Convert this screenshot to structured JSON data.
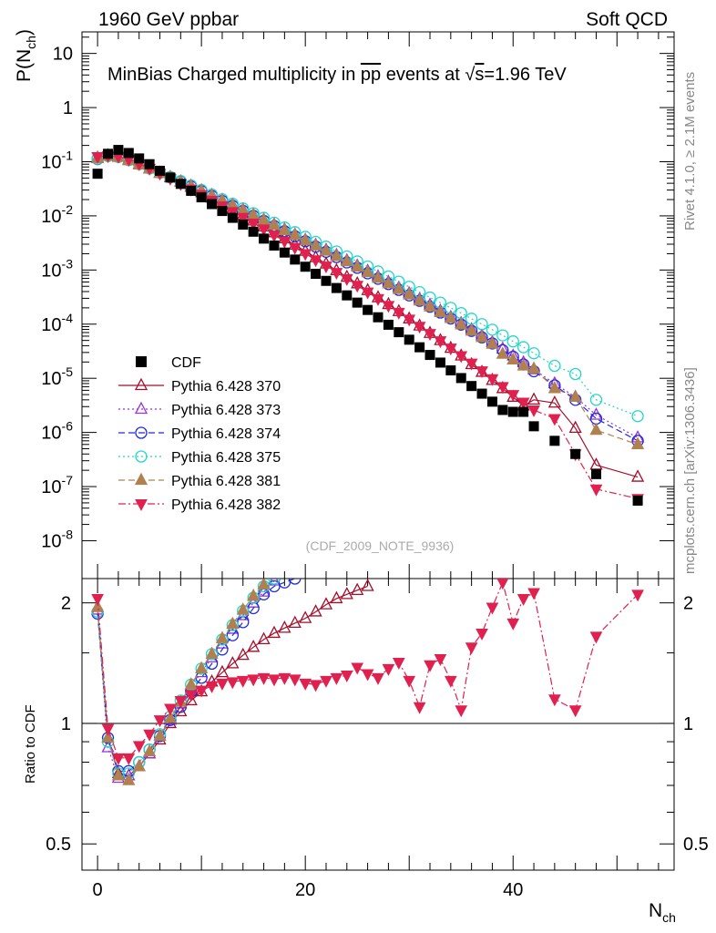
{
  "header": {
    "left": "1960 GeV ppbar",
    "right": "Soft QCD"
  },
  "side_labels": {
    "top": "Rivet 4.1.0, ≥ 2.1M events",
    "bottom": "mcplots.cern.ch [arXiv:1306.3436]"
  },
  "chart_data": {
    "type": "scatter",
    "title_prefix": "MinBias Charged multiplicity in ",
    "title_pbar": "pp",
    "title_mid": " events at ",
    "title_sqrt": "s",
    "title_suffix": "=1.96 TeV",
    "watermark": "(CDF_2009_NOTE_9936)",
    "ylabel_main": "P(N",
    "ylabel_main_sub": "ch",
    "ylabel_main_close": ")",
    "ylabel_ratio": "Ratio to CDF",
    "xlabel": "N",
    "xlabel_sub": "ch",
    "yscale": "log",
    "ylim_main": [
      2e-09,
      25
    ],
    "ylim_ratio": [
      0.43,
      2.3
    ],
    "xlim": [
      -1.5,
      55.5
    ],
    "x_ticks": [
      0,
      20,
      40
    ],
    "y_ticks_main": [
      {
        "base": "10",
        "exp": "-8",
        "value": 1e-08
      },
      {
        "base": "10",
        "exp": "-7",
        "value": 1e-07
      },
      {
        "base": "10",
        "exp": "-6",
        "value": 1e-06
      },
      {
        "base": "10",
        "exp": "-5",
        "value": 1e-05
      },
      {
        "base": "10",
        "exp": "-4",
        "value": 0.0001
      },
      {
        "base": "10",
        "exp": "-3",
        "value": 0.001
      },
      {
        "base": "10",
        "exp": "-2",
        "value": 0.01
      },
      {
        "base": "10",
        "exp": "-1",
        "value": 0.1
      },
      {
        "base": "1",
        "exp": "",
        "value": 1
      },
      {
        "base": "10",
        "exp": "",
        "value": 10
      }
    ],
    "y_ticks_ratio": [
      {
        "label": "0.5",
        "value": 0.5
      },
      {
        "label": "1",
        "value": 1
      },
      {
        "label": "2",
        "value": 2
      }
    ],
    "data": {
      "name": "CDF",
      "color": "#000000",
      "x": [
        0,
        1,
        2,
        3,
        4,
        5,
        6,
        7,
        8,
        9,
        10,
        11,
        12,
        13,
        14,
        15,
        16,
        17,
        18,
        19,
        20,
        21,
        22,
        23,
        24,
        25,
        26,
        27,
        28,
        29,
        30,
        31,
        32,
        33,
        34,
        35,
        36,
        37,
        38,
        39,
        40,
        41,
        42,
        44,
        46,
        48,
        52
      ],
      "y": [
        0.06,
        0.14,
        0.165,
        0.145,
        0.115,
        0.09,
        0.068,
        0.051,
        0.039,
        0.029,
        0.022,
        0.0165,
        0.0123,
        0.0092,
        0.0069,
        0.0051,
        0.0038,
        0.00283,
        0.0021,
        0.00156,
        0.00115,
        0.00085,
        0.00063,
        0.000465,
        0.00034,
        0.00025,
        0.000183,
        0.000134,
        9.75e-05,
        7.1e-05,
        5.16e-05,
        3.74e-05,
        2.7e-05,
        1.95e-05,
        1.4e-05,
        1.01e-05,
        7.2e-06,
        5.2e-06,
        3.7e-06,
        2.6e-06,
        2.4e-06,
        2.4e-06,
        1.3e-06,
        7e-07,
        4e-07,
        1.7e-07,
        5.5e-08
      ]
    },
    "series": [
      {
        "name": "Pythia 6.428 370",
        "color": "#a50d2a",
        "marker": "triangle-up-open",
        "line": "solid",
        "x": [
          0,
          1,
          2,
          3,
          4,
          5,
          6,
          7,
          8,
          9,
          10,
          11,
          12,
          13,
          14,
          15,
          16,
          17,
          18,
          19,
          20,
          21,
          22,
          23,
          24,
          25,
          26,
          27,
          28,
          29,
          30,
          31,
          32,
          33,
          34,
          35,
          36,
          37,
          38,
          39,
          40,
          41,
          42,
          44,
          46,
          48,
          52
        ],
        "y": [
          0.118,
          0.13,
          0.125,
          0.109,
          0.09,
          0.075,
          0.062,
          0.051,
          0.042,
          0.034,
          0.027,
          0.0215,
          0.0169,
          0.0133,
          0.0104,
          0.0081,
          0.0063,
          0.0049,
          0.0038,
          0.0029,
          0.00223,
          0.0017,
          0.0013,
          0.00098,
          0.00074,
          0.00056,
          0.00042,
          0.00031,
          0.000232,
          0.000172,
          0.000126,
          9.3e-05,
          6.8e-05,
          5e-05,
          3.6e-05,
          2.6e-05,
          1.8e-05,
          1.3e-05,
          9.2e-06,
          6.5e-06,
          4.5e-06,
          3.1e-06,
          4e-06,
          3.5e-06,
          1.2e-06,
          2.5e-07,
          1.5e-07
        ],
        "ratio": [
          1.95,
          0.92,
          0.75,
          0.74,
          0.78,
          0.84,
          0.91,
          1.0,
          1.07,
          1.14,
          1.2,
          1.27,
          1.34,
          1.41,
          1.48,
          1.55,
          1.62,
          1.68,
          1.73,
          1.78,
          1.83,
          1.9,
          1.98,
          2.05,
          2.1,
          2.15,
          2.2
        ]
      },
      {
        "name": "Pythia 6.428 373",
        "color": "#9a2fe0",
        "marker": "triangle-up-open",
        "line": "dotted",
        "x": [
          0,
          1,
          2,
          3,
          4,
          5,
          6,
          7,
          8,
          9,
          10,
          11,
          12,
          13,
          14,
          15,
          16,
          17,
          18,
          19,
          20,
          21,
          22,
          23,
          24,
          25,
          26,
          27,
          28,
          29,
          30,
          31,
          32,
          33,
          34,
          35,
          36,
          37,
          38,
          39,
          40,
          41,
          42,
          44,
          46,
          48,
          52
        ],
        "y": [
          0.115,
          0.128,
          0.122,
          0.107,
          0.089,
          0.074,
          0.062,
          0.052,
          0.043,
          0.036,
          0.0295,
          0.0241,
          0.0196,
          0.016,
          0.013,
          0.0105,
          0.0085,
          0.0069,
          0.0056,
          0.0045,
          0.0036,
          0.0029,
          0.00235,
          0.00188,
          0.0015,
          0.0012,
          0.00096,
          0.00076,
          0.0006,
          0.00047,
          0.00037,
          0.00029,
          0.000226,
          0.000175,
          0.000135,
          0.000104,
          8e-05,
          6.1e-05,
          4.6e-05,
          3.5e-05,
          2.6e-05,
          1.95e-05,
          1.45e-05,
          8e-06,
          4.5e-06,
          2.1e-06,
          8e-07
        ],
        "ratio": [
          1.92,
          0.87,
          0.73,
          0.74,
          0.78,
          0.84,
          0.93,
          1.02,
          1.12,
          1.24,
          1.34,
          1.46,
          1.58,
          1.72,
          1.86,
          2.0,
          2.13,
          2.27
        ]
      },
      {
        "name": "Pythia 6.428 374",
        "color": "#1f2bdc",
        "marker": "circle-open",
        "line": "dashed",
        "x": [
          0,
          1,
          2,
          3,
          4,
          5,
          6,
          7,
          8,
          9,
          10,
          11,
          12,
          13,
          14,
          15,
          16,
          17,
          18,
          19,
          20,
          21,
          22,
          23,
          24,
          25,
          26,
          27,
          28,
          29,
          30,
          31,
          32,
          33,
          34,
          35,
          36,
          37,
          38,
          39,
          40,
          41,
          42,
          44,
          46,
          48,
          52
        ],
        "y": [
          0.112,
          0.129,
          0.124,
          0.109,
          0.091,
          0.076,
          0.063,
          0.052,
          0.043,
          0.035,
          0.0287,
          0.0233,
          0.0189,
          0.0153,
          0.0124,
          0.01,
          0.0081,
          0.0065,
          0.0052,
          0.0042,
          0.0034,
          0.0027,
          0.00217,
          0.00173,
          0.00138,
          0.0011,
          0.00087,
          0.00069,
          0.00055,
          0.00043,
          0.00034,
          0.00027,
          0.00021,
          0.000164,
          0.000127,
          9.8e-05,
          7.5e-05,
          5.7e-05,
          4.4e-05,
          3.3e-05,
          2.5e-05,
          1.8e-05,
          1.35e-05,
          7.4e-06,
          4e-06,
          1.8e-06,
          7e-07
        ],
        "ratio": [
          1.88,
          0.92,
          0.76,
          0.76,
          0.8,
          0.86,
          0.93,
          1.02,
          1.1,
          1.2,
          1.3,
          1.41,
          1.53,
          1.66,
          1.79,
          1.94,
          2.1,
          2.2,
          2.25,
          2.3
        ]
      },
      {
        "name": "Pythia 6.428 375",
        "color": "#22d6c8",
        "marker": "circle-open",
        "line": "dotted",
        "x": [
          0,
          1,
          2,
          3,
          4,
          5,
          6,
          7,
          8,
          9,
          10,
          11,
          12,
          13,
          14,
          15,
          16,
          17,
          18,
          19,
          20,
          21,
          22,
          23,
          24,
          25,
          26,
          27,
          28,
          29,
          30,
          31,
          32,
          33,
          34,
          35,
          36,
          37,
          38,
          39,
          40,
          41,
          42,
          44,
          46,
          48,
          52
        ],
        "y": [
          0.114,
          0.127,
          0.122,
          0.107,
          0.09,
          0.075,
          0.063,
          0.052,
          0.044,
          0.0365,
          0.03,
          0.0247,
          0.0203,
          0.0167,
          0.0137,
          0.0112,
          0.0092,
          0.0075,
          0.0061,
          0.005,
          0.0041,
          0.0033,
          0.0027,
          0.0022,
          0.00178,
          0.00144,
          0.00116,
          0.00094,
          0.00076,
          0.00061,
          0.00049,
          0.00039,
          0.00031,
          0.00025,
          0.0002,
          0.00016,
          0.000126,
          0.0001,
          7.9e-05,
          6.2e-05,
          4.8e-05,
          3.75e-05,
          2.9e-05,
          1.7e-05,
          1.2e-05,
          4e-06,
          2e-06
        ],
        "ratio": [
          1.9,
          0.9,
          0.75,
          0.75,
          0.8,
          0.86,
          0.94,
          1.04,
          1.14,
          1.25,
          1.37,
          1.49,
          1.62,
          1.76,
          1.91,
          2.06,
          2.2,
          2.3
        ]
      },
      {
        "name": "Pythia 6.428 381",
        "color": "#b08050",
        "marker": "triangle-up-filled",
        "line": "dashed",
        "x": [
          0,
          1,
          2,
          3,
          4,
          5,
          6,
          7,
          8,
          9,
          10,
          11,
          12,
          13,
          14,
          15,
          16,
          17,
          18,
          19,
          20,
          21,
          22,
          23,
          24,
          25,
          26,
          27,
          28,
          29,
          30,
          31,
          32,
          33,
          34,
          35,
          36,
          37,
          38,
          39,
          40,
          41,
          42,
          44,
          46,
          48,
          52
        ],
        "y": [
          0.116,
          0.127,
          0.121,
          0.105,
          0.088,
          0.074,
          0.061,
          0.051,
          0.042,
          0.035,
          0.0287,
          0.0235,
          0.0192,
          0.0156,
          0.0127,
          0.0103,
          0.0083,
          0.0067,
          0.0054,
          0.0044,
          0.0035,
          0.0028,
          0.00224,
          0.00179,
          0.00143,
          0.00114,
          0.0009,
          0.00071,
          0.00056,
          0.00044,
          0.00035,
          0.00027,
          0.00021,
          0.000165,
          0.000128,
          9.8e-05,
          7.5e-05,
          5.7e-05,
          4.3e-05,
          2.8e-05,
          2.2e-05,
          1.7e-05,
          1.5e-05,
          6.5e-06,
          4.5e-06,
          1.1e-06,
          6e-07
        ],
        "ratio": [
          1.95,
          0.92,
          0.74,
          0.72,
          0.78,
          0.85,
          0.93,
          1.03,
          1.13,
          1.25,
          1.37,
          1.49,
          1.63,
          1.77,
          1.92,
          2.08,
          2.22
        ]
      },
      {
        "name": "Pythia 6.428 382",
        "color": "#e0204e",
        "marker": "triangle-down-filled",
        "line": "dashdot",
        "x": [
          0,
          1,
          2,
          3,
          4,
          5,
          6,
          7,
          8,
          9,
          10,
          11,
          12,
          13,
          14,
          15,
          16,
          17,
          18,
          19,
          20,
          21,
          22,
          23,
          24,
          25,
          26,
          27,
          28,
          29,
          30,
          31,
          32,
          33,
          34,
          35,
          36,
          37,
          38,
          39,
          40,
          41,
          42,
          44,
          46,
          48,
          52
        ],
        "y": [
          0.124,
          0.128,
          0.125,
          0.11,
          0.091,
          0.075,
          0.061,
          0.049,
          0.039,
          0.031,
          0.0245,
          0.0193,
          0.0152,
          0.0119,
          0.0093,
          0.0073,
          0.0057,
          0.0044,
          0.0034,
          0.0026,
          0.002,
          0.00154,
          0.00118,
          0.0009,
          0.00069,
          0.00052,
          0.00039,
          0.000295,
          0.00022,
          0.000165,
          0.000123,
          9.1e-05,
          6.7e-05,
          4.9e-05,
          3.6e-05,
          2.6e-05,
          1.9e-05,
          1.37e-05,
          9.8e-06,
          7e-06,
          5e-06,
          3.6e-06,
          2.6e-06,
          1.8e-06,
          4e-07,
          9e-08,
          6e-08
        ],
        "ratio": [
          2.05,
          0.97,
          0.82,
          0.82,
          0.88,
          0.94,
          1.02,
          1.09,
          1.14,
          1.18,
          1.21,
          1.24,
          1.26,
          1.27,
          1.28,
          1.29,
          1.3,
          1.29,
          1.3,
          1.29,
          1.26,
          1.25,
          1.28,
          1.3,
          1.32,
          1.38,
          1.33,
          1.3,
          1.37,
          1.42,
          1.28,
          1.1,
          1.4,
          1.45,
          1.28,
          1.08,
          1.55,
          1.68,
          1.95,
          2.25,
          1.78,
          2.05,
          2.12,
          1.15,
          1.08,
          1.65,
          2.1
        ]
      }
    ]
  }
}
